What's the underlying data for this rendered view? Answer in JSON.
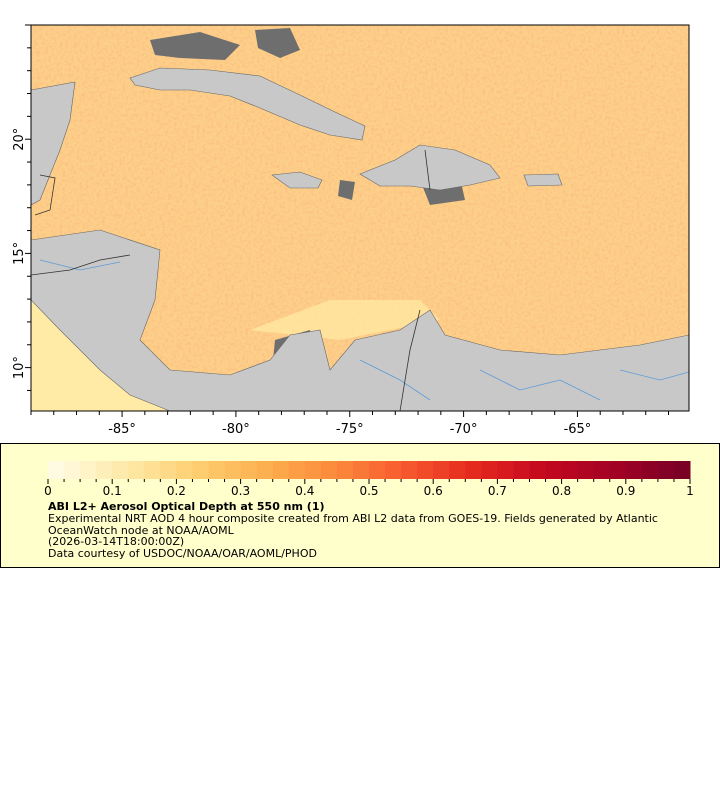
{
  "map": {
    "lon_ticks": [
      "-85°",
      "-80°",
      "-75°",
      "-70°",
      "-65°"
    ],
    "lon_values": [
      -85,
      -80,
      -75,
      -70,
      -65
    ],
    "lat_ticks": [
      "20°",
      "15°",
      "10°"
    ],
    "lat_values": [
      20,
      15,
      10
    ],
    "lon_range": [
      -89,
      -60.1
    ],
    "lat_range": [
      8.1,
      25
    ],
    "colors": {
      "land": "#c8c8c8",
      "nodata": "#6e6e6e",
      "rivers": "#5f9bd8",
      "borders": "#777777"
    }
  },
  "colorbar": {
    "range": [
      0,
      1
    ],
    "tick_labels": [
      "0",
      "0.1",
      "0.2",
      "0.3",
      "0.4",
      "0.5",
      "0.6",
      "0.7",
      "0.8",
      "0.9",
      "1"
    ],
    "stops": [
      "#fffbe3",
      "#fee9a8",
      "#fecf72",
      "#fdb04f",
      "#fc8a3c",
      "#f85a2e",
      "#e4291f",
      "#c5081f",
      "#a30125",
      "#7a0026"
    ]
  },
  "legend": {
    "title": "ABI L2+ Aerosol Optical Depth at 550 nm (1)",
    "line1": "Experimental NRT AOD 4 hour composite created from ABI L2 data from GOES-19. Fields generated by Atlantic",
    "line2": "OceanWatch node at NOAA/AOML",
    "line3": "(2026-03-14T18:00:00Z)",
    "line4": "Data courtesy of USDOC/NOAA/OAR/AOML/PHOD"
  }
}
